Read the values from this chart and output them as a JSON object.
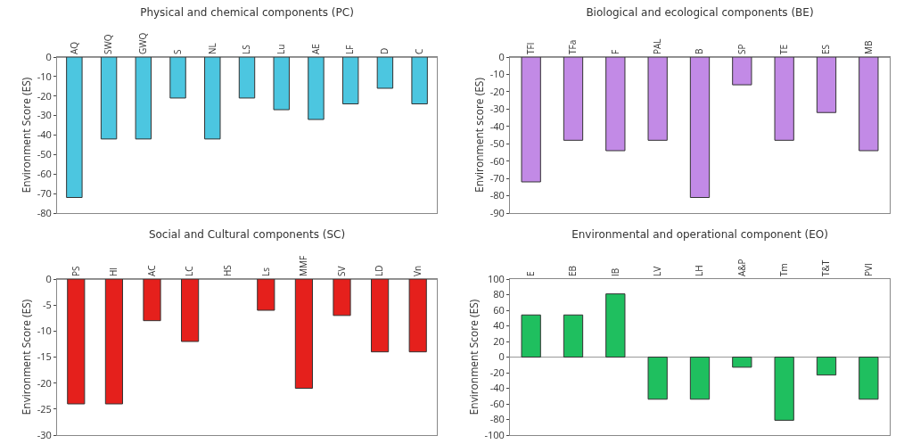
{
  "chart_data": [
    {
      "type": "bar",
      "title": "Physical and chemical components (PC)",
      "ylabel": "Environment Score (ES)",
      "categories": [
        "AQ",
        "SWQ",
        "GWQ",
        "S",
        "NL",
        "LS",
        "Lu",
        "AE",
        "LF",
        "D",
        "C"
      ],
      "values": [
        -72,
        -42,
        -42,
        -21,
        -42,
        -21,
        -27,
        -32,
        -24,
        -16,
        -24
      ],
      "color": "#4cc6e0",
      "ylim": [
        -80,
        0
      ],
      "yticks": [
        -80,
        -70,
        -60,
        -50,
        -40,
        -30,
        -20,
        -10,
        0
      ]
    },
    {
      "type": "bar",
      "title": "Biological and ecological components (BE)",
      "ylabel": "Environment score (ES)",
      "categories": [
        "TFl",
        "TFa",
        "F",
        "PAL",
        "B",
        "SP",
        "TE",
        "ES",
        "MB"
      ],
      "values": [
        -72,
        -48,
        -54,
        -48,
        -81,
        -16,
        -48,
        -32,
        -54
      ],
      "color": "#c28ae6",
      "ylim": [
        -90,
        0
      ],
      "yticks": [
        -90,
        -80,
        -70,
        -60,
        -50,
        -40,
        -30,
        -20,
        -10,
        0
      ]
    },
    {
      "type": "bar",
      "title": "Social and Cultural components (SC)",
      "ylabel": "Environment Score (ES)",
      "categories": [
        "PS",
        "HI",
        "AC",
        "LC",
        "HS",
        "Ls",
        "MMF",
        "SV",
        "LD",
        "Vn"
      ],
      "values": [
        -24,
        -24,
        -8,
        -12,
        null,
        -6,
        -21,
        -7,
        -14,
        -14
      ],
      "color": "#e5201c",
      "ylim": [
        -30,
        0
      ],
      "yticks": [
        -30,
        -25,
        -20,
        -15,
        -10,
        -5,
        0
      ]
    },
    {
      "type": "bar",
      "title": "Environmental and operational component (EO)",
      "ylabel": "Environment Score (ES)",
      "categories": [
        "E",
        "EB",
        "IB",
        "LV",
        "LH",
        "A&P",
        "Tm",
        "T&T",
        "PVI"
      ],
      "values": [
        54,
        54,
        81,
        -54,
        -54,
        -13,
        -81,
        -23,
        -54
      ],
      "color": "#1fbf5f",
      "ylim": [
        -100,
        100
      ],
      "yticks": [
        -100,
        -80,
        -60,
        -40,
        -20,
        0,
        20,
        40,
        60,
        80,
        100
      ]
    }
  ]
}
